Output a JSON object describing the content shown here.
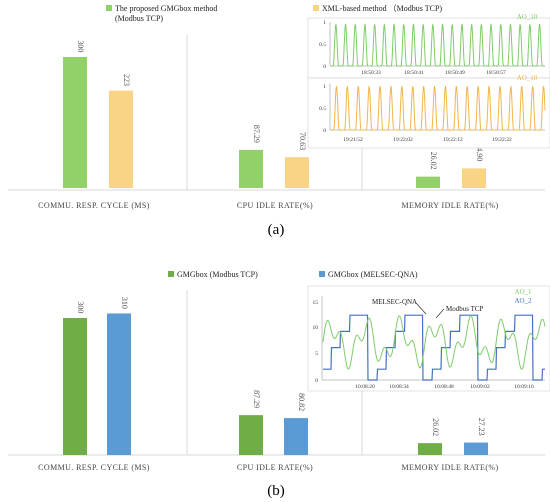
{
  "panel_a": {
    "caption": "(a)",
    "legend": [
      {
        "label_line1": "The proposed GMGbox method",
        "label_line2": "(Modbus TCP)",
        "color": "#92d06a"
      },
      {
        "label_line1": "XML-based method （Modbus TCP)",
        "label_line2": "",
        "color": "#fad486"
      }
    ],
    "groups": [
      "COMMU. RESP. CYCLE (MS)",
      "CPU IDLE RATE(%)",
      "MEMORY IDLE RATE(%)"
    ],
    "inset_top": {
      "series_label": "AO_10",
      "color": "#7fcc6a",
      "y_ticks": [
        "1",
        "0.5",
        "0"
      ],
      "x_ticks": [
        "18:50:33",
        "18:50:41",
        "18:50:49",
        "18:50:57"
      ]
    },
    "inset_bottom": {
      "series_label": "AO_10",
      "color": "#f2b64a",
      "y_ticks": [
        "1",
        "0.5",
        "0"
      ],
      "x_ticks": [
        "19:21:52",
        "19:22:02",
        "19:22:12",
        "19:22:22"
      ]
    }
  },
  "panel_b": {
    "caption": "(b)",
    "legend": [
      {
        "label": "GMGbox (Modbus TCP)",
        "color": "#70ad47"
      },
      {
        "label": "GMGbox (MELSEC-QNA)",
        "color": "#5b9bd5"
      }
    ],
    "groups": [
      "COMMU. RESP. CYCLE (MS)",
      "CPU IDLE RATE(%)",
      "MEMORY IDLE RATE(%)"
    ],
    "inset": {
      "series": [
        {
          "name": "AO_1",
          "color": "#7fcc6a"
        },
        {
          "name": "AO_2",
          "color": "#4472c4"
        }
      ],
      "annotations": [
        "MELSEC-QNA",
        "Modbus TCP"
      ],
      "y_ticks": [
        "15",
        "10",
        "5",
        "0"
      ],
      "x_ticks": [
        "10:08:20",
        "10:08:34",
        "10:08:48",
        "10:09:02",
        "10:09:16"
      ]
    }
  },
  "chart_data": [
    {
      "type": "bar",
      "title": "",
      "categories": [
        "COMMU. RESP. CYCLE (MS)",
        "CPU IDLE RATE(%)",
        "MEMORY IDLE RATE(%)"
      ],
      "series": [
        {
          "name": "The proposed GMGbox method (Modbus TCP)",
          "values": [
            300,
            87.29,
            26.02
          ],
          "labels": [
            "300",
            "87.29",
            "26.02"
          ],
          "color": "#92d06a"
        },
        {
          "name": "XML-based method （Modbus TCP)",
          "values": [
            223,
            70.63,
            44.9
          ],
          "labels": [
            "223",
            "70.63",
            "44.90"
          ],
          "color": "#fad486"
        }
      ],
      "ylim": [
        0,
        300
      ],
      "grid": false,
      "legend_position": "top"
    },
    {
      "type": "bar",
      "title": "",
      "categories": [
        "COMMU. RESP. CYCLE (MS)",
        "CPU IDLE RATE(%)",
        "MEMORY IDLE RATE(%)"
      ],
      "series": [
        {
          "name": "GMGbox (Modbus TCP)",
          "values": [
            300,
            87.29,
            26.02
          ],
          "labels": [
            "300",
            "87.29",
            "26.02"
          ],
          "color": "#70ad47"
        },
        {
          "name": "GMGbox (MELSEC-QNA)",
          "values": [
            310,
            80.82,
            27.23
          ],
          "labels": [
            "310",
            "80.82",
            "27.23"
          ],
          "color": "#5b9bd5"
        }
      ],
      "ylim": [
        0,
        310
      ],
      "grid": false,
      "legend_position": "top"
    }
  ]
}
